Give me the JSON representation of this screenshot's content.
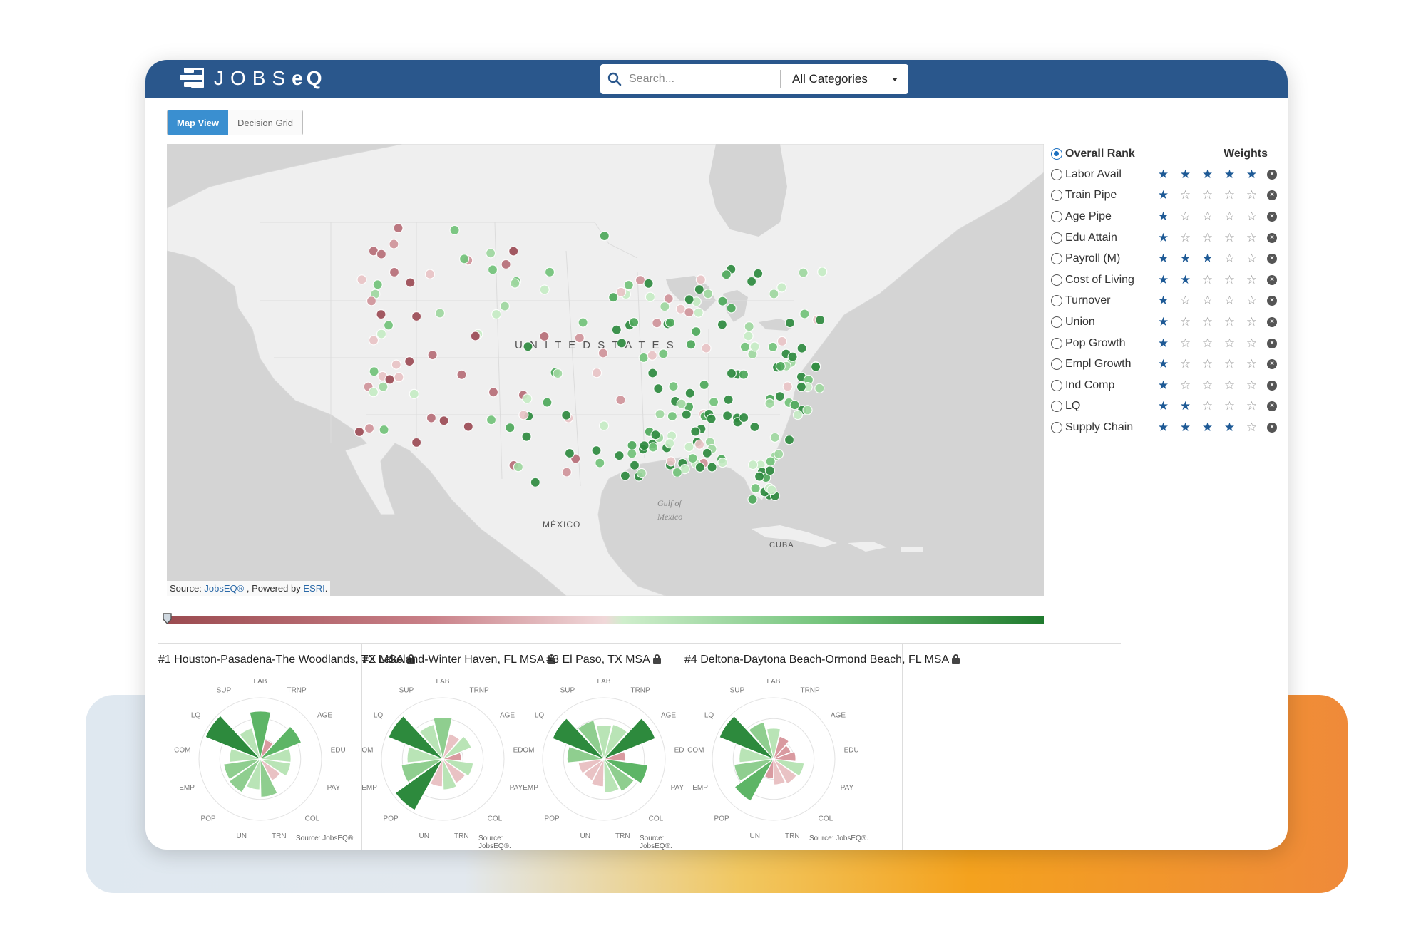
{
  "app": {
    "brand_light": "JOBS",
    "brand_bold": "eQ"
  },
  "search": {
    "placeholder": "Search...",
    "category": "All Categories"
  },
  "view_toggle": {
    "map_label": "Map View",
    "grid_label": "Decision Grid"
  },
  "map": {
    "labels": {
      "us": "U N I T E D   S T A T E S",
      "mexico": "MÉXICO",
      "gulf_line1": "Gulf of",
      "gulf_line2": "Mexico",
      "cuba": "CUBA"
    },
    "source_prefix": "Source: ",
    "source_link1": "JobsEQ®",
    "source_mid": " , Powered by ",
    "source_link2": "ESRI",
    "source_suffix": "."
  },
  "panel": {
    "weights_title": "Weights",
    "overall_label": "Overall Rank",
    "rows": [
      {
        "label": "Labor Avail",
        "stars": 5
      },
      {
        "label": "Train Pipe",
        "stars": 1
      },
      {
        "label": "Age Pipe",
        "stars": 1
      },
      {
        "label": "Edu Attain",
        "stars": 1
      },
      {
        "label": "Payroll (M)",
        "stars": 3
      },
      {
        "label": "Cost of Living",
        "stars": 2
      },
      {
        "label": "Turnover",
        "stars": 1
      },
      {
        "label": "Union",
        "stars": 1
      },
      {
        "label": "Pop Growth",
        "stars": 1
      },
      {
        "label": "Empl Growth",
        "stars": 1
      },
      {
        "label": "Ind Comp",
        "stars": 1
      },
      {
        "label": "LQ",
        "stars": 2
      },
      {
        "label": "Supply Chain",
        "stars": 4
      }
    ]
  },
  "colors": {
    "topbar": "#2a578c",
    "accent": "#3a8fd0",
    "star": "#1e5a96",
    "bad": "#9b4b50",
    "good": "#1f7a2d"
  },
  "radar_axes": [
    "LAB",
    "TRNP",
    "AGE",
    "EDU",
    "PAY",
    "COL",
    "TRN",
    "UN",
    "POP",
    "EMP",
    "COM",
    "LQ",
    "SUP"
  ],
  "cards": [
    {
      "title": "#1 Houston-Pasadena-The Woodlands, TX MSA",
      "source": "Source: JobsEQ®.",
      "values": [
        0.78,
        0.32,
        0.72,
        0.5,
        0.5,
        0.4,
        0.62,
        0.5,
        0.62,
        0.6,
        0.5,
        0.96,
        0.52
      ]
    },
    {
      "title": "#2 Lakeland-Winter Haven, FL MSA",
      "source": "Source: JobsEQ®.",
      "values": [
        0.68,
        0.42,
        0.5,
        0.3,
        0.5,
        0.45,
        0.5,
        0.45,
        0.95,
        0.68,
        0.58,
        0.95,
        0.58
      ]
    },
    {
      "title": "#3 El Paso, TX MSA",
      "source": "Source: JobsEQ®.",
      "values": [
        0.55,
        0.58,
        0.9,
        0.35,
        0.72,
        0.6,
        0.55,
        0.45,
        0.4,
        0.42,
        0.6,
        0.9,
        0.65
      ]
    },
    {
      "title": "#4 Deltona-Daytona Beach-Ormond Beach, FL MSA",
      "source": "Source: JobsEQ®.",
      "values": [
        0.5,
        0.38,
        0.3,
        0.36,
        0.5,
        0.46,
        0.42,
        0.32,
        0.78,
        0.65,
        0.56,
        0.95,
        0.62
      ]
    }
  ]
}
